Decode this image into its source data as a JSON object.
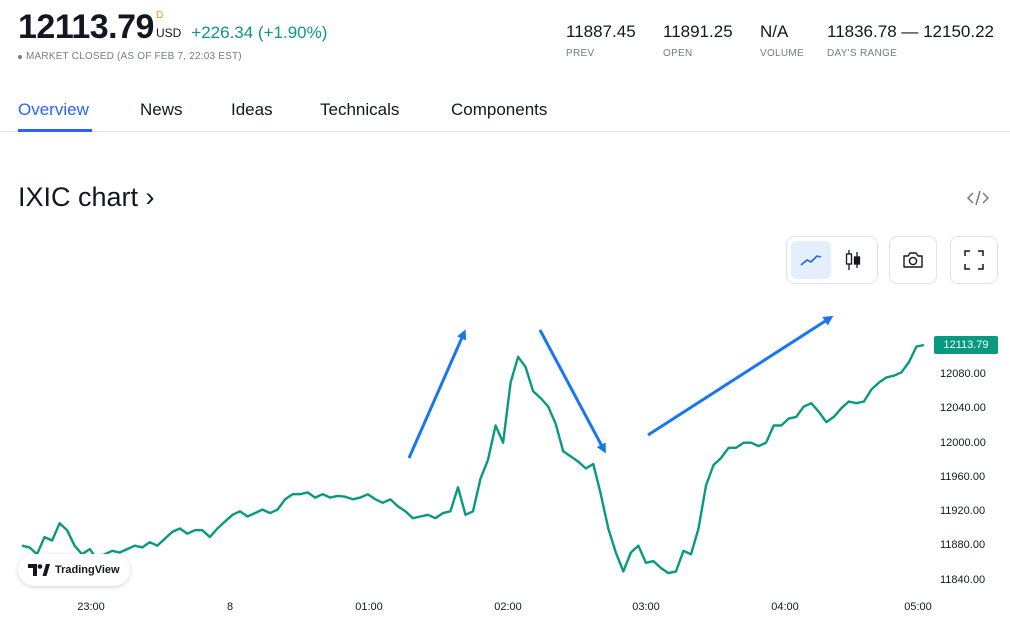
{
  "header": {
    "price": "12113.79",
    "currency_sup": "D",
    "currency": "USD",
    "change": "+226.34 (+1.90%)",
    "status": "MARKET CLOSED (AS OF FEB 7, 22:03 EST)",
    "stats": [
      {
        "value": "11887.45",
        "label": "PREV"
      },
      {
        "value": "11891.25",
        "label": "OPEN"
      },
      {
        "value": "N/A",
        "label": "VOLUME"
      },
      {
        "value": "11836.78 — 12150.22",
        "label": "DAY'S RANGE"
      }
    ]
  },
  "tabs": [
    "Overview",
    "News",
    "Ideas",
    "Technicals",
    "Components"
  ],
  "chart_title": "IXIC chart ›",
  "toolbar": {
    "line_icon": "line-chart-icon",
    "candle_icon": "candlestick-icon",
    "camera_icon": "camera-icon",
    "fullscreen_icon": "fullscreen-icon"
  },
  "embed_icon": "code-embed-icon",
  "colors": {
    "accent": "#2962ff",
    "up": "#089981",
    "series": "#089981",
    "arrows": "#1976f0"
  },
  "logo_text": "TradingView",
  "chart_data": {
    "type": "line",
    "last_value_label": "12113.79",
    "y_ticks": [
      "12080.00",
      "12040.00",
      "12000.00",
      "11960.00",
      "11920.00",
      "11880.00",
      "11840.00"
    ],
    "x_ticks": [
      "23:00",
      "8",
      "01:00",
      "02:00",
      "03:00",
      "04:00",
      "05:00"
    ],
    "ylim": [
      11820,
      12160
    ],
    "series": [
      {
        "values": [
          11880,
          11878,
          11870,
          11890,
          11886,
          11906,
          11898,
          11880,
          11870,
          11876,
          11864,
          11870,
          11874,
          11872,
          11876,
          11880,
          11878,
          11884,
          11880,
          11888,
          11896,
          11900,
          11894,
          11898,
          11898,
          11890,
          11900,
          11908,
          11916,
          11920,
          11914,
          11918,
          11922,
          11918,
          11922,
          11934,
          11940,
          11940,
          11942,
          11936,
          11940,
          11936,
          11938,
          11937,
          11934,
          11936,
          11940,
          11934,
          11930,
          11934,
          11926,
          11920,
          11912,
          11914,
          11916,
          11912,
          11918,
          11920,
          11948,
          11916,
          11920,
          11958,
          11980,
          12020,
          12000,
          12070,
          12100,
          12088,
          12060,
          12052,
          12042,
          12022,
          11990,
          11984,
          11978,
          11970,
          11975,
          11940,
          11900,
          11872,
          11850,
          11872,
          11880,
          11860,
          11862,
          11854,
          11848,
          11850,
          11874,
          11870,
          11900,
          11950,
          11974,
          11982,
          11994,
          11994,
          12000,
          12000,
          11996,
          12000,
          12020,
          12020,
          12028,
          12030,
          12042,
          12046,
          12036,
          12024,
          12030,
          12040,
          12048,
          12046,
          12048,
          12062,
          12070,
          12076,
          12078,
          12082,
          12094,
          12112,
          12113.79
        ]
      }
    ]
  }
}
